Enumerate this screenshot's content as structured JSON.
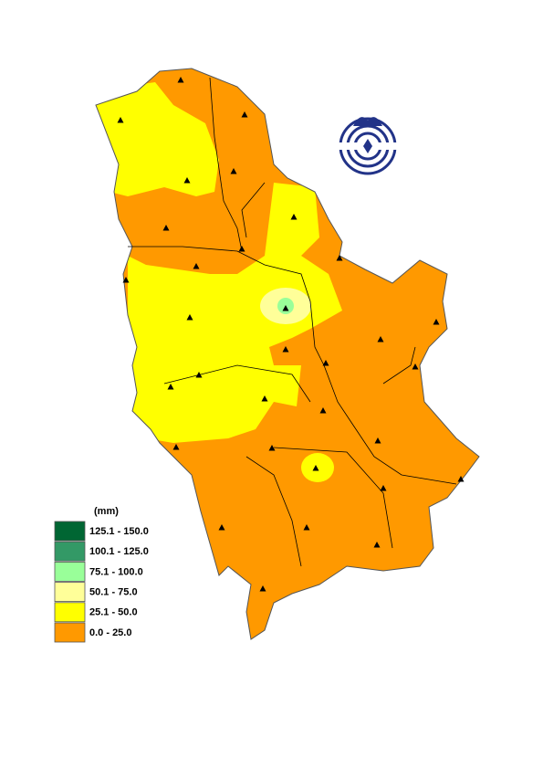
{
  "legend": {
    "title": "(mm)",
    "items": [
      {
        "label": "125.1 - 150.0",
        "color": "#006633"
      },
      {
        "label": "100.1 - 125.0",
        "color": "#339966"
      },
      {
        "label": "75.1 - 100.0",
        "color": "#99ff99"
      },
      {
        "label": "50.1 - 75.0",
        "color": "#ffff99"
      },
      {
        "label": "25.1 - 50.0",
        "color": "#ffff00"
      },
      {
        "label": "0.0 - 25.0",
        "color": "#ff9900"
      }
    ]
  }
}
